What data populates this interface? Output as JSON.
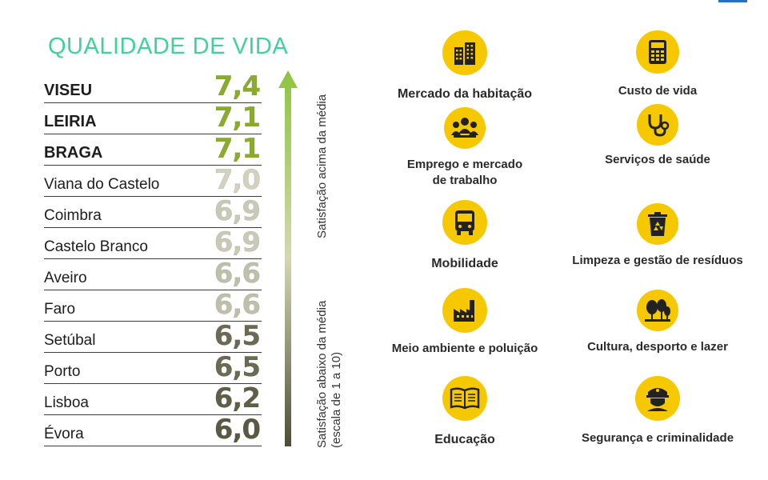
{
  "title": "QUALIDADE DE VIDA",
  "ranking": [
    {
      "city": "VISEU",
      "score": "7,4",
      "bold": true,
      "color": "#8aac2a"
    },
    {
      "city": "LEIRIA",
      "score": "7,1",
      "bold": true,
      "color": "#8aac2a"
    },
    {
      "city": "BRAGA",
      "score": "7,1",
      "bold": true,
      "color": "#8aac2a"
    },
    {
      "city": "Viana do Castelo",
      "score": "7,0",
      "bold": false,
      "color": "#d2d2bf"
    },
    {
      "city": "Coimbra",
      "score": "6,9",
      "bold": false,
      "color": "#c9cab6"
    },
    {
      "city": "Castelo Branco",
      "score": "6,9",
      "bold": false,
      "color": "#c9cab6"
    },
    {
      "city": "Aveiro",
      "score": "6,6",
      "bold": false,
      "color": "#bfc0aa"
    },
    {
      "city": "Faro",
      "score": "6,6",
      "bold": false,
      "color": "#bfc0aa"
    },
    {
      "city": "Setúbal",
      "score": "6,5",
      "bold": false,
      "color": "#6b6a52"
    },
    {
      "city": "Porto",
      "score": "6,5",
      "bold": false,
      "color": "#6b6a52"
    },
    {
      "city": "Lisboa",
      "score": "6,2",
      "bold": false,
      "color": "#5f5e47"
    },
    {
      "city": "Évora",
      "score": "6,0",
      "bold": false,
      "color": "#5a5944"
    }
  ],
  "axis": {
    "above": "Satisfação acima da média",
    "below_line1": "Satisfação abaixo da média",
    "below_line2": "(escala de 1 a 10)"
  },
  "categories": [
    {
      "icon": "building-icon",
      "label": "Mercado da habitação"
    },
    {
      "icon": "calculator-icon",
      "label": "Custo de vida"
    },
    {
      "icon": "people-icon",
      "label_line1": "Emprego e mercado",
      "label_line2": "de trabalho"
    },
    {
      "icon": "stethoscope-icon",
      "label": "Serviços de saúde"
    },
    {
      "icon": "bus-icon",
      "label": "Mobilidade"
    },
    {
      "icon": "recycle-bin-icon",
      "label": "Limpeza e gestão de resíduos"
    },
    {
      "icon": "factory-icon",
      "label": "Meio ambiente e poluição"
    },
    {
      "icon": "trees-icon",
      "label": "Cultura, desporto e lazer"
    },
    {
      "icon": "book-icon",
      "label": "Educação"
    },
    {
      "icon": "police-icon",
      "label": "Segurança e criminalidade"
    }
  ],
  "colors": {
    "accent_yellow": "#f6c800",
    "title_green": "#3ed39a"
  }
}
